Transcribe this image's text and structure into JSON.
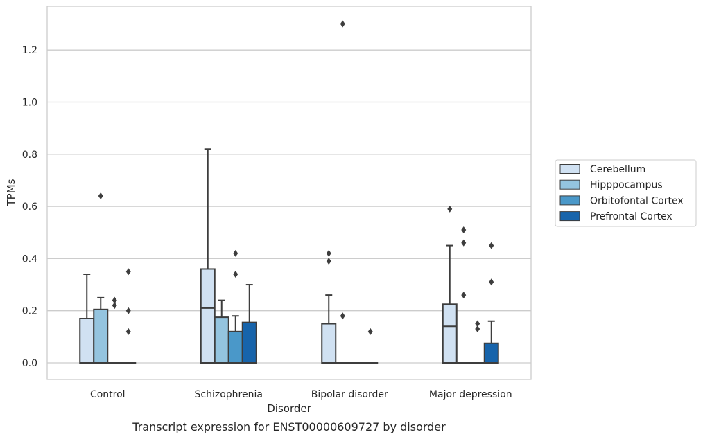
{
  "caption": "Transcript expression for ENST00000609727 by disorder",
  "chart_data": {
    "type": "box",
    "title": "",
    "xlabel": "Disorder",
    "ylabel": "TPMs",
    "categories": [
      "Control",
      "Schizophrenia",
      "Bipolar disorder",
      "Major depression"
    ],
    "ylim": [
      -0.065,
      1.37
    ],
    "yticks": [
      0.0,
      0.2,
      0.4,
      0.6,
      0.8,
      1.0,
      1.2
    ],
    "ytick_labels": [
      "0.0",
      "0.2",
      "0.4",
      "0.6",
      "0.8",
      "1.0",
      "1.2"
    ],
    "grid": "horizontal",
    "legend_position": "right, outside",
    "series": [
      {
        "name": "Cerebellum",
        "color": "#d0e1f2",
        "boxes": [
          {
            "q1": 0.0,
            "median": 0.0,
            "q3": 0.17,
            "whisker_low": 0.0,
            "whisker_high": 0.34,
            "outliers": []
          },
          {
            "q1": 0.0,
            "median": 0.21,
            "q3": 0.36,
            "whisker_low": 0.0,
            "whisker_high": 0.82,
            "outliers": []
          },
          {
            "q1": 0.0,
            "median": 0.0,
            "q3": 0.15,
            "whisker_low": 0.0,
            "whisker_high": 0.26,
            "outliers": [
              0.39,
              0.42
            ]
          },
          {
            "q1": 0.0,
            "median": 0.14,
            "q3": 0.225,
            "whisker_low": 0.0,
            "whisker_high": 0.45,
            "outliers": [
              0.59
            ]
          }
        ]
      },
      {
        "name": "Hipppocampus",
        "color": "#94c4df",
        "boxes": [
          {
            "q1": 0.0,
            "median": 0.0,
            "q3": 0.205,
            "whisker_low": 0.0,
            "whisker_high": 0.25,
            "outliers": [
              0.64
            ]
          },
          {
            "q1": 0.0,
            "median": 0.0,
            "q3": 0.175,
            "whisker_low": 0.0,
            "whisker_high": 0.24,
            "outliers": []
          },
          {
            "q1": 0.0,
            "median": 0.0,
            "q3": 0.0,
            "whisker_low": 0.0,
            "whisker_high": 0.0,
            "outliers": [
              0.18,
              1.3
            ]
          },
          {
            "q1": 0.0,
            "median": 0.0,
            "q3": 0.0,
            "whisker_low": 0.0,
            "whisker_high": 0.0,
            "outliers": [
              0.26,
              0.46,
              0.51
            ]
          }
        ]
      },
      {
        "name": "Orbitofontal Cortex",
        "color": "#4a98c9",
        "boxes": [
          {
            "q1": 0.0,
            "median": 0.0,
            "q3": 0.0,
            "whisker_low": 0.0,
            "whisker_high": 0.0,
            "outliers": [
              0.22,
              0.24
            ]
          },
          {
            "q1": 0.0,
            "median": 0.0,
            "q3": 0.12,
            "whisker_low": 0.0,
            "whisker_high": 0.18,
            "outliers": [
              0.34,
              0.42
            ]
          },
          {
            "q1": 0.0,
            "median": 0.0,
            "q3": 0.0,
            "whisker_low": 0.0,
            "whisker_high": 0.0,
            "outliers": []
          },
          {
            "q1": 0.0,
            "median": 0.0,
            "q3": 0.0,
            "whisker_low": 0.0,
            "whisker_high": 0.0,
            "outliers": [
              0.13,
              0.15
            ]
          }
        ]
      },
      {
        "name": "Prefrontal Cortex",
        "color": "#1764ab",
        "boxes": [
          {
            "q1": 0.0,
            "median": 0.0,
            "q3": 0.0,
            "whisker_low": 0.0,
            "whisker_high": 0.0,
            "outliers": [
              0.12,
              0.2,
              0.35
            ]
          },
          {
            "q1": 0.0,
            "median": 0.0,
            "q3": 0.155,
            "whisker_low": 0.0,
            "whisker_high": 0.3,
            "outliers": []
          },
          {
            "q1": 0.0,
            "median": 0.0,
            "q3": 0.0,
            "whisker_low": 0.0,
            "whisker_high": 0.0,
            "outliers": [
              0.12
            ]
          },
          {
            "q1": 0.0,
            "median": 0.0,
            "q3": 0.075,
            "whisker_low": 0.0,
            "whisker_high": 0.16,
            "outliers": [
              0.31,
              0.45
            ]
          }
        ]
      }
    ]
  }
}
